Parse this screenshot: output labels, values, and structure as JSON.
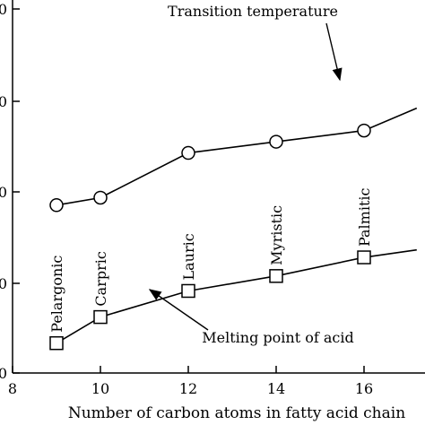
{
  "chart_data": {
    "type": "line",
    "xlabel": "Number of carbon atoms in fatty acid chain",
    "ylabel": "",
    "x_ticks": [
      8,
      10,
      12,
      14,
      16
    ],
    "y_tick_labels": [
      "0",
      "0",
      "0",
      "0",
      "0"
    ],
    "xlim": [
      8,
      17.2
    ],
    "series": [
      {
        "name": "Transition temperature",
        "marker": "circle",
        "x": [
          9,
          10,
          12,
          14,
          16,
          17.2
        ],
        "y": [
          45,
          47,
          59,
          62,
          65,
          71
        ]
      },
      {
        "name": "Melting point of acid",
        "marker": "square",
        "x": [
          9,
          10,
          12,
          14,
          16,
          17.2
        ],
        "y": [
          8,
          15,
          22,
          26,
          31,
          33
        ]
      }
    ],
    "point_labels": [
      {
        "x": 9,
        "text": "Pelargonic"
      },
      {
        "x": 10,
        "text": "Carpric"
      },
      {
        "x": 12,
        "text": "Lauric"
      },
      {
        "x": 14,
        "text": "Myristic"
      },
      {
        "x": 16,
        "text": "Palmitic"
      }
    ],
    "annotations": [
      {
        "text": "Transition temperature",
        "series": 0
      },
      {
        "text": "Melting point of acid",
        "series": 1
      }
    ]
  }
}
